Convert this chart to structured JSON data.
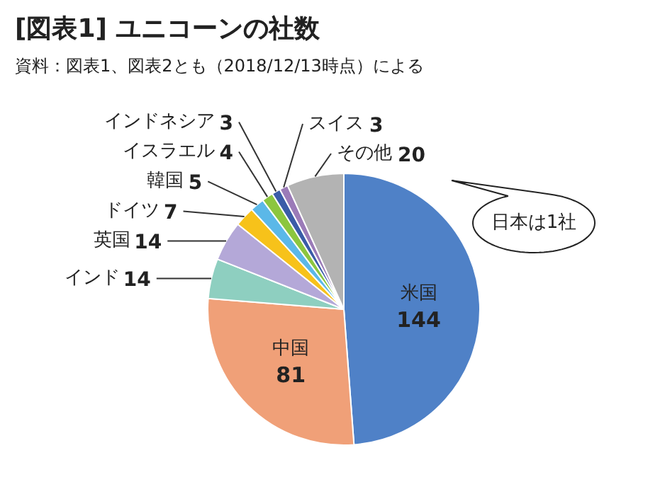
{
  "chart_data": {
    "type": "pie",
    "title": "[図表1] ユニコーンの社数",
    "subtitle": "資料：図表1、図表2とも（2018/12/13時点）による",
    "categories": [
      "米国",
      "中国",
      "インド",
      "英国",
      "ドイツ",
      "韓国",
      "イスラエル",
      "インドネシア",
      "スイス",
      "その他"
    ],
    "values": [
      144,
      81,
      14,
      14,
      7,
      5,
      4,
      3,
      3,
      20
    ],
    "colors": [
      "#4f81c7",
      "#f0a078",
      "#8ecfc0",
      "#b4a8d8",
      "#f7c21a",
      "#5bb8e8",
      "#8cc63f",
      "#3a5ca8",
      "#9b7bb8",
      "#b3b3b3"
    ],
    "data_labels": true,
    "annotations": [
      "日本は1社"
    ]
  }
}
